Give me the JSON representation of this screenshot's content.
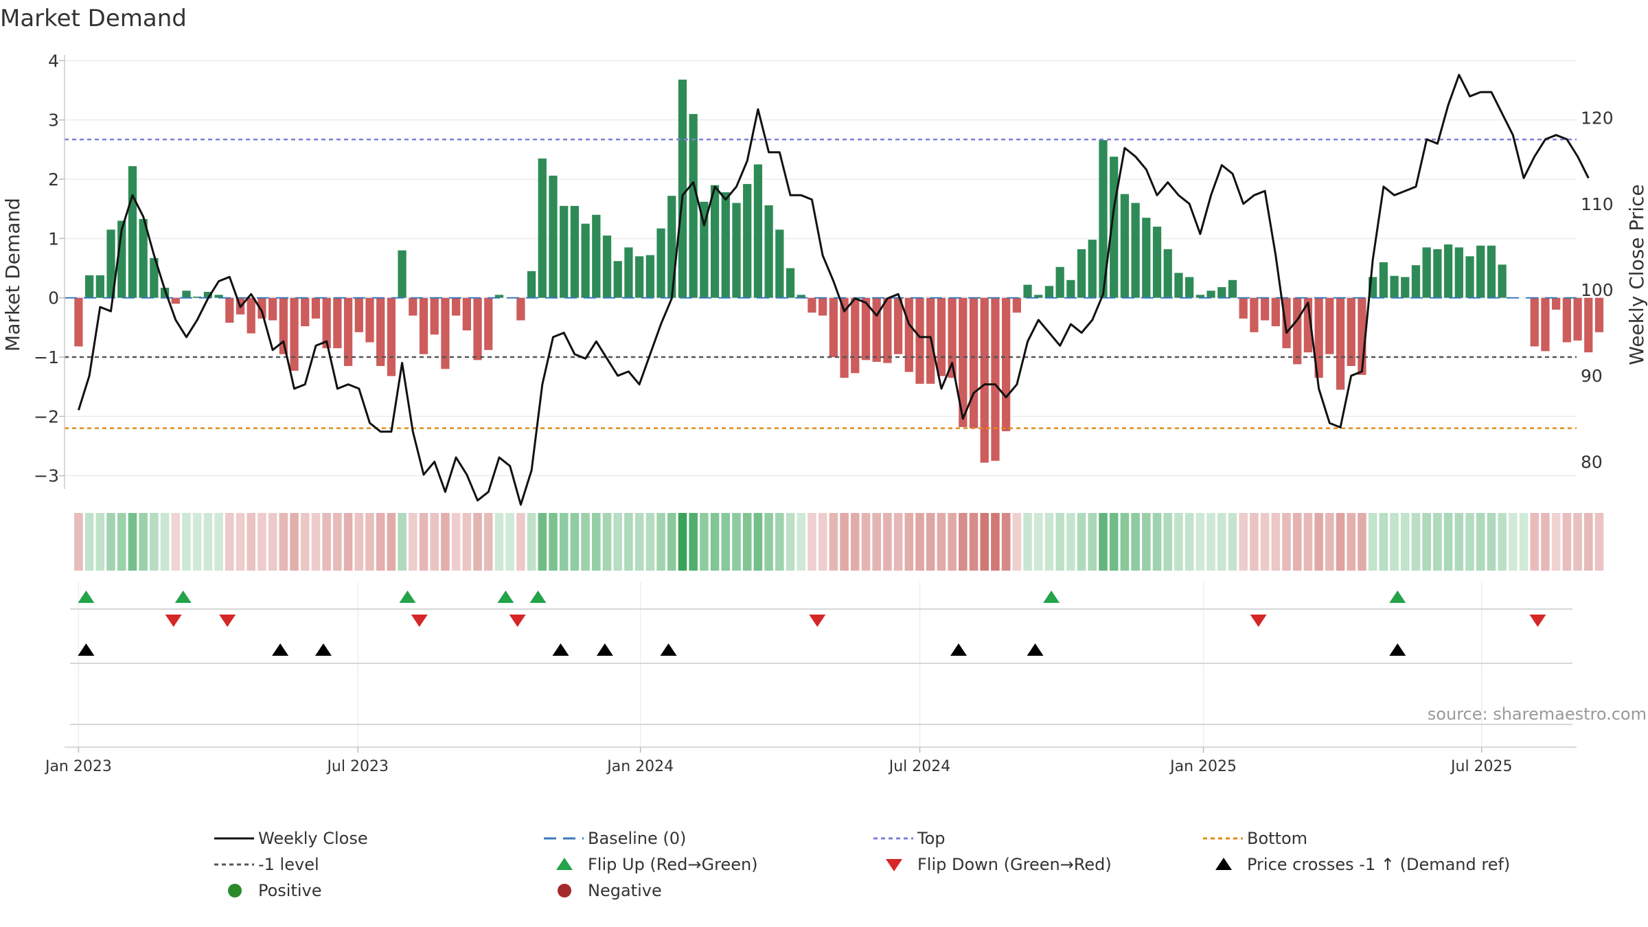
{
  "chart_data": {
    "type": "bar",
    "title": "Market Demand",
    "ylabel": "Market Demand",
    "y2label": "Weekly Close Price",
    "ylim": [
      -3.2,
      4.05
    ],
    "y2lim": [
      77,
      127
    ],
    "yticks": [
      4,
      3,
      2,
      1,
      0,
      -1,
      -2,
      -3
    ],
    "ytick_labels": [
      "4",
      "3",
      "2",
      "1",
      "0",
      "−1",
      "−2",
      "−3"
    ],
    "y2ticks": [
      80,
      90,
      100,
      110,
      120
    ],
    "y2tick_labels": [
      "80",
      "90",
      "100",
      "110",
      "120"
    ],
    "x_range_weeks": [
      -1.3,
      138.9
    ],
    "xticks": [
      {
        "week": 0,
        "label": "Jan 2023"
      },
      {
        "week": 25.9,
        "label": "Jul 2023"
      },
      {
        "week": 52.1,
        "label": "Jan 2024"
      },
      {
        "week": 78,
        "label": "Jul 2024"
      },
      {
        "week": 104.3,
        "label": "Jan 2025"
      },
      {
        "week": 130.1,
        "label": "Jul 2025"
      }
    ],
    "reference_lines": [
      {
        "name": "Top",
        "value": 2.67,
        "color": "#7e7ed8",
        "dash": "6,5"
      },
      {
        "name": "-1 level",
        "value": -1.0,
        "color": "#555555",
        "dash": "6,5"
      },
      {
        "name": "Bottom",
        "value": -2.2,
        "color": "#e08c1a",
        "dash": "6,5"
      },
      {
        "name": "Baseline (0)",
        "value": 0,
        "color": "#3a78b8",
        "dash": "18,10"
      }
    ],
    "series": [
      {
        "name": "Market Demand",
        "type": "bar",
        "values": [
          -0.82,
          0.38,
          0.38,
          1.15,
          1.3,
          2.22,
          1.33,
          0.67,
          0.17,
          -0.1,
          0.12,
          0.02,
          0.1,
          0.05,
          -0.42,
          -0.28,
          -0.6,
          -0.35,
          -0.38,
          -0.95,
          -1.23,
          -0.48,
          -0.35,
          -0.85,
          -0.85,
          -1.15,
          -0.58,
          -0.75,
          -1.15,
          -1.32,
          0.8,
          -0.3,
          -0.95,
          -0.62,
          -1.2,
          -0.3,
          -0.55,
          -1.05,
          -0.88,
          0.05,
          0.0,
          -0.38,
          0.45,
          2.35,
          2.06,
          1.55,
          1.55,
          1.25,
          1.4,
          1.05,
          0.62,
          0.85,
          0.7,
          0.72,
          1.17,
          1.72,
          3.68,
          3.1,
          1.62,
          1.9,
          1.78,
          1.6,
          1.92,
          2.25,
          1.56,
          1.15,
          0.5,
          0.05,
          -0.25,
          -0.3,
          -1.0,
          -1.35,
          -1.27,
          -1.05,
          -1.08,
          -1.1,
          -0.95,
          -1.25,
          -1.45,
          -1.45,
          -1.32,
          -1.35,
          -2.18,
          -2.2,
          -2.78,
          -2.75,
          -2.25,
          -0.25,
          0.22,
          0.05,
          0.2,
          0.52,
          0.3,
          0.82,
          0.98,
          2.66,
          2.38,
          1.75,
          1.6,
          1.35,
          1.2,
          0.82,
          0.42,
          0.35,
          0.05,
          0.12,
          0.18,
          0.3,
          -0.35,
          -0.58,
          -0.38,
          -0.48,
          -0.85,
          -1.12,
          -0.92,
          -1.35,
          -0.95,
          -1.55,
          -1.15,
          -1.3,
          0.35,
          0.6,
          0.37,
          0.35,
          0.55,
          0.85,
          0.82,
          0.9,
          0.85,
          0.7,
          0.88,
          0.88,
          0.56,
          0.0,
          0.0,
          -0.82,
          -0.9,
          -0.2,
          -0.75,
          -0.72,
          -0.92,
          -0.58
        ]
      },
      {
        "name": "Weekly Close",
        "type": "line",
        "axis": "right",
        "values": [
          86,
          90,
          98,
          97.5,
          107,
          111,
          108.5,
          104,
          100,
          96.5,
          94.5,
          96.5,
          99,
          101,
          101.5,
          98,
          99.5,
          97.5,
          93,
          94,
          88.5,
          89,
          93.5,
          94,
          88.5,
          89,
          88.5,
          84.5,
          83.5,
          83.5,
          91.5,
          83.5,
          78.5,
          80,
          76.5,
          80.5,
          78.5,
          75.5,
          76.5,
          80.5,
          79.5,
          75,
          79,
          89,
          94.5,
          95,
          92.5,
          92,
          94,
          92,
          90,
          90.5,
          89,
          92.5,
          96,
          99,
          111,
          112.5,
          107.5,
          112,
          110.5,
          112,
          115,
          121,
          116,
          116,
          111,
          111,
          110.5,
          104,
          101,
          97.5,
          99,
          98.5,
          97,
          99,
          99.5,
          96,
          94.5,
          94.5,
          88.5,
          91.5,
          85,
          88,
          89,
          89,
          87.5,
          89,
          94,
          96.5,
          95,
          93.5,
          96,
          95,
          96.5,
          99.5,
          109.5,
          116.5,
          115.5,
          114,
          111,
          112.5,
          111,
          110,
          106.5,
          111,
          114.5,
          113.5,
          110,
          111,
          111.5,
          104,
          95,
          96.5,
          98.5,
          88.5,
          84.5,
          84,
          90,
          90.5,
          103.5,
          112,
          111,
          111.5,
          112,
          117.5,
          117,
          121.5,
          125,
          122.5,
          123,
          123,
          120.5,
          118,
          113,
          115.5,
          117.5,
          118,
          117.5,
          115.5,
          113
        ]
      }
    ],
    "heat_strip": {
      "positive_color": "#2e9e4f",
      "negative_color": "#c0504d"
    },
    "event_rows": [
      {
        "name": "Flip Up (Red→Green)",
        "row": 1,
        "symbol": "triangle-up",
        "color": "#23a34a",
        "weeks": [
          0.7,
          9.7,
          30.5,
          39.6,
          42.6,
          90.2,
          122.3
        ]
      },
      {
        "name": "Flip Down (Green→Red)",
        "row": 1,
        "symbol": "triangle-down",
        "color": "#d62728",
        "weeks": [
          8.8,
          13.8,
          31.6,
          40.7,
          68.5,
          109.4,
          135.3
        ]
      },
      {
        "name": "Price crosses -1 ↑ (Demand ref)",
        "row": 2,
        "symbol": "triangle-up",
        "color": "#000000",
        "weeks": [
          0.7,
          18.7,
          22.7,
          44.7,
          48.8,
          54.7,
          81.6,
          88.7,
          122.3
        ]
      }
    ],
    "source_note": "source: sharemaestro.com",
    "legend": [
      {
        "label": "Weekly Close",
        "kind": "line",
        "color": "#111111",
        "dash": ""
      },
      {
        "label": "Baseline (0)",
        "kind": "line",
        "color": "#3a78b8",
        "dash": "18,10"
      },
      {
        "label": "Top",
        "kind": "line",
        "color": "#7e7ed8",
        "dash": "6,5"
      },
      {
        "label": "Bottom",
        "kind": "line",
        "color": "#e08c1a",
        "dash": "6,5"
      },
      {
        "label": "-1 level",
        "kind": "line",
        "color": "#555555",
        "dash": "6,5"
      },
      {
        "label": "Flip Up (Red→Green)",
        "kind": "tri-up",
        "color": "#23a34a",
        "dash": ""
      },
      {
        "label": "Flip Down (Green→Red)",
        "kind": "tri-down",
        "color": "#d62728",
        "dash": ""
      },
      {
        "label": "Price crosses -1 ↑ (Demand ref)",
        "kind": "tri-up",
        "color": "#000000",
        "dash": ""
      },
      {
        "label": "Positive",
        "kind": "dot",
        "color": "#2a8a2a",
        "dash": ""
      },
      {
        "label": "Negative",
        "kind": "dot",
        "color": "#a52a2a",
        "dash": ""
      }
    ]
  }
}
